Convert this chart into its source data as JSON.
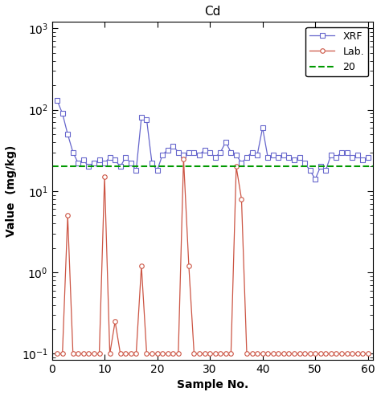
{
  "title": "Cd",
  "xlabel": "Sample No.",
  "ylabel": "Value  (mg/kg)",
  "xlim": [
    0,
    61
  ],
  "ylim_log": [
    0.085,
    1200
  ],
  "threshold": 20,
  "threshold_label": "20",
  "xrf_x": [
    1,
    2,
    3,
    4,
    5,
    6,
    7,
    8,
    9,
    10,
    11,
    12,
    13,
    14,
    15,
    16,
    17,
    18,
    19,
    20,
    21,
    22,
    23,
    24,
    25,
    26,
    27,
    28,
    29,
    30,
    31,
    32,
    33,
    34,
    35,
    36,
    37,
    38,
    39,
    40,
    41,
    42,
    43,
    44,
    45,
    46,
    47,
    48,
    49,
    50,
    51,
    52,
    53,
    54,
    55,
    56,
    57,
    58,
    59,
    60
  ],
  "xrf_y": [
    130,
    90,
    50,
    30,
    22,
    24,
    20,
    22,
    24,
    22,
    26,
    24,
    20,
    26,
    22,
    18,
    80,
    75,
    22,
    18,
    28,
    32,
    36,
    30,
    28,
    30,
    30,
    28,
    32,
    30,
    26,
    30,
    40,
    30,
    28,
    22,
    26,
    30,
    28,
    60,
    26,
    28,
    26,
    28,
    26,
    24,
    26,
    22,
    18,
    14,
    20,
    18,
    28,
    26,
    30,
    30,
    26,
    28,
    24,
    26
  ],
  "lab_x": [
    1,
    2,
    3,
    4,
    5,
    6,
    7,
    8,
    9,
    10,
    11,
    12,
    13,
    14,
    15,
    16,
    17,
    18,
    19,
    20,
    21,
    22,
    23,
    24,
    25,
    26,
    27,
    28,
    29,
    30,
    31,
    32,
    33,
    34,
    35,
    36,
    37,
    38,
    39,
    40,
    41,
    42,
    43,
    44,
    45,
    46,
    47,
    48,
    49,
    50,
    51,
    52,
    53,
    54,
    55,
    56,
    57,
    58,
    59,
    60
  ],
  "lab_y": [
    0.1,
    0.1,
    5,
    0.1,
    0.1,
    0.1,
    0.1,
    0.1,
    0.1,
    15,
    0.1,
    0.25,
    0.1,
    0.1,
    0.1,
    0.1,
    1.2,
    0.1,
    0.1,
    0.1,
    0.1,
    0.1,
    0.1,
    0.1,
    25,
    1.2,
    0.1,
    0.1,
    0.1,
    0.1,
    0.1,
    0.1,
    0.1,
    0.1,
    20,
    8,
    0.1,
    0.1,
    0.1,
    0.1,
    0.1,
    0.1,
    0.1,
    0.1,
    0.1,
    0.1,
    0.1,
    0.1,
    0.1,
    0.1,
    0.1,
    0.1,
    0.1,
    0.1,
    0.1,
    0.1,
    0.1,
    0.1,
    0.1,
    0.1
  ],
  "xrf_color": "#6666cc",
  "lab_color": "#cc5544",
  "threshold_color": "#009900",
  "xrf_label": "XRF",
  "lab_label": "Lab.",
  "legend_loc": "upper right",
  "yticks": [
    0.1,
    1.0,
    10.0,
    100.0,
    1000.0
  ],
  "ytick_labels": [
    "10$^{-1}$",
    "10$^{0}$",
    "10$^{1}$",
    "10$^{2}$",
    "10$^{3}$"
  ],
  "xticks": [
    0,
    10,
    20,
    30,
    40,
    50,
    60
  ]
}
